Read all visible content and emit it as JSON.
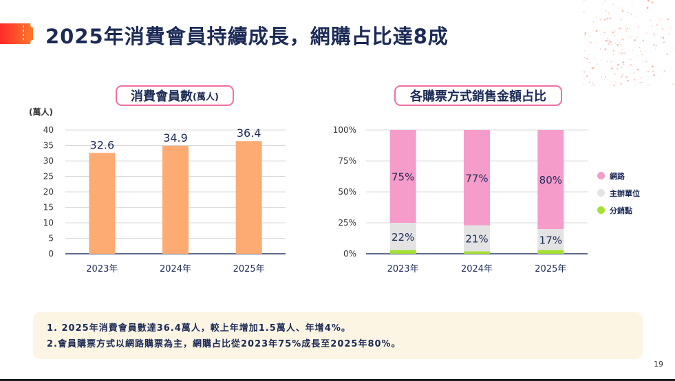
{
  "title": "2025年消費會員持續成長，網購占比達8成",
  "page_number": "19",
  "colors": {
    "accent_pink": "#f06fa3",
    "navy": "#1b2a56",
    "bar_orange": "#fdab72",
    "online_pink": "#f69cca",
    "organizer_gray": "#e3e3e3",
    "retail_green": "#a4e033",
    "notes_bg": "#fdf5e4"
  },
  "chart_data": [
    {
      "type": "bar",
      "title": "消費會員數",
      "title_unit": "(萬人)",
      "ylabel": "(萬人)",
      "categories": [
        "2023年",
        "2024年",
        "2025年"
      ],
      "values": [
        32.6,
        34.9,
        36.4
      ],
      "value_labels": [
        "32.6",
        "34.9",
        "36.4"
      ],
      "ylim": [
        0,
        40
      ],
      "yticks": [
        "0",
        "5",
        "10",
        "15",
        "20",
        "25",
        "30",
        "35",
        "40"
      ],
      "grid": true
    },
    {
      "type": "bar",
      "stacked": true,
      "title": "各購票方式銷售金額占比",
      "categories": [
        "2023年",
        "2024年",
        "2025年"
      ],
      "series": [
        {
          "name": "分銷點",
          "values": [
            3,
            2,
            3
          ],
          "color": "#a4e033",
          "labels": [
            "",
            "",
            ""
          ]
        },
        {
          "name": "主辦單位",
          "values": [
            22,
            21,
            17
          ],
          "color": "#e3e3e3",
          "labels": [
            "22%",
            "21%",
            "17%"
          ]
        },
        {
          "name": "網路",
          "values": [
            75,
            77,
            80
          ],
          "color": "#f69cca",
          "labels": [
            "75%",
            "77%",
            "80%"
          ]
        }
      ],
      "legend_order": [
        "網路",
        "主辦單位",
        "分銷點"
      ],
      "legend_colors": [
        "#f69cca",
        "#e3e3e3",
        "#a4e033"
      ],
      "ylim": [
        0,
        100
      ],
      "yticks": [
        "0%",
        "25%",
        "50%",
        "75%",
        "100%"
      ],
      "grid": true,
      "legend_position": "right"
    }
  ],
  "notes": [
    "1. 2025年消費會員數達36.4萬人，較上年增加1.5萬人、年增4%。",
    "2.會員購票方式以網路購票為主，網購占比從2023年75%成長至2025年80%。"
  ]
}
